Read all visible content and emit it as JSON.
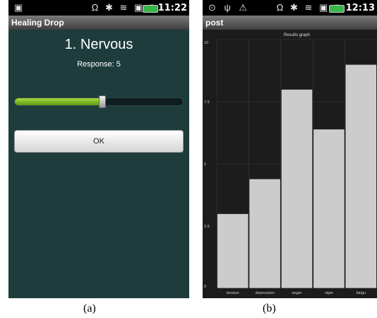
{
  "phone_a": {
    "status": {
      "time": "11:22",
      "icons": "Ω ✱ ≋ ▣ ▮"
    },
    "app_title": "Healing Drop",
    "question": "1. Nervous",
    "response_text": "Response: 5",
    "slider": {
      "level_fraction": 0.52,
      "fill_color": "#7cbd24"
    },
    "ok_label": "OK"
  },
  "phone_b": {
    "status": {
      "time": "12:13",
      "left_icons": "⊙ ψ ⚠",
      "icons": "Ω ✱ ≋ ▣ ▮"
    },
    "app_title": "post"
  },
  "chart_data": {
    "type": "bar",
    "title": "Results graph",
    "categories": [
      "tension",
      "depression",
      "anger",
      "vigor",
      "fatigue"
    ],
    "category_labels": [
      "tension",
      "depression",
      "anger",
      "vigor",
      "fatigu"
    ],
    "values": [
      3,
      4.4,
      8,
      6.4,
      9
    ],
    "ylim": [
      0,
      10
    ],
    "yticks": [
      "0",
      "2.5",
      "5",
      "7.5",
      "10"
    ],
    "grid": true,
    "bar_color": "#cccccc",
    "background": "#1c1c1c"
  },
  "captions": {
    "a": "(a)",
    "b": "(b)"
  }
}
